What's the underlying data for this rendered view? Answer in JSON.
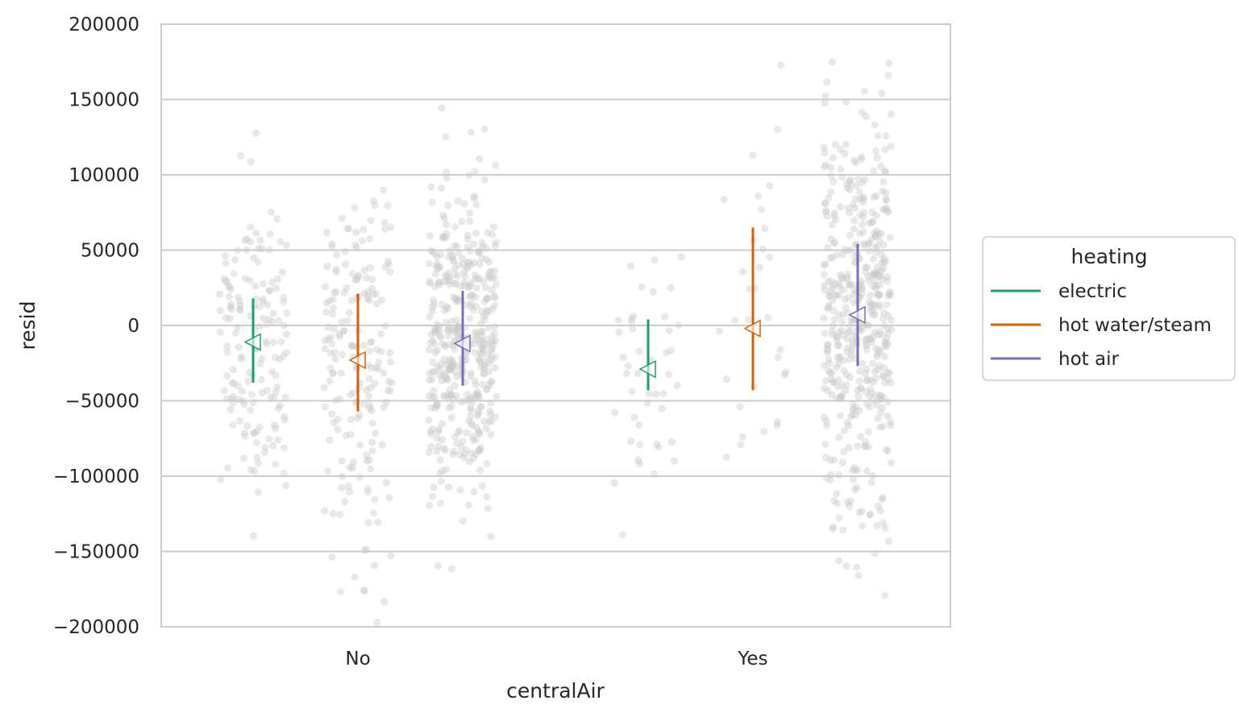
{
  "chart_data": {
    "type": "scatter",
    "xlabel": "centralAir",
    "ylabel": "resid",
    "categories": [
      "No",
      "Yes"
    ],
    "ylim": [
      -200000,
      200000
    ],
    "yticks": [
      200000,
      150000,
      100000,
      50000,
      0,
      -50000,
      -100000,
      -150000,
      -200000
    ],
    "ytick_labels": [
      "200000",
      "150000",
      "100000",
      "50000",
      "0",
      "−50000",
      "−100000",
      "−150000",
      "−200000"
    ],
    "grid": "horizontal",
    "legend": {
      "title": "heating",
      "placement": "right"
    },
    "series": [
      {
        "name": "electric",
        "color": "#1b9e77",
        "points": [
          {
            "category": "No",
            "mean": -11000,
            "low": -38000,
            "high": 18000
          },
          {
            "category": "Yes",
            "mean": -29000,
            "low": -43000,
            "high": 4000
          }
        ]
      },
      {
        "name": "hot water/steam",
        "color": "#d95f02",
        "points": [
          {
            "category": "No",
            "mean": -23000,
            "low": -57000,
            "high": 21000
          },
          {
            "category": "Yes",
            "mean": -2000,
            "low": -43000,
            "high": 65000
          }
        ]
      },
      {
        "name": "hot air",
        "color": "#7570b3",
        "points": [
          {
            "category": "No",
            "mean": -12000,
            "low": -40000,
            "high": 23000
          },
          {
            "category": "Yes",
            "mean": 7000,
            "low": -27000,
            "high": 54000
          }
        ]
      }
    ],
    "jitter_points": {
      "color": "#c8c8c8",
      "groups": [
        {
          "category": "No",
          "series": "electric",
          "count": 160,
          "sd": 50000
        },
        {
          "category": "No",
          "series": "hot water/steam",
          "count": 190,
          "sd": 62000
        },
        {
          "category": "No",
          "series": "hot air",
          "count": 440,
          "sd": 52000
        },
        {
          "category": "Yes",
          "series": "electric",
          "count": 45,
          "sd": 50000
        },
        {
          "category": "Yes",
          "series": "hot water/steam",
          "count": 32,
          "sd": 60000
        },
        {
          "category": "Yes",
          "series": "hot air",
          "count": 480,
          "sd": 68000
        }
      ]
    }
  }
}
